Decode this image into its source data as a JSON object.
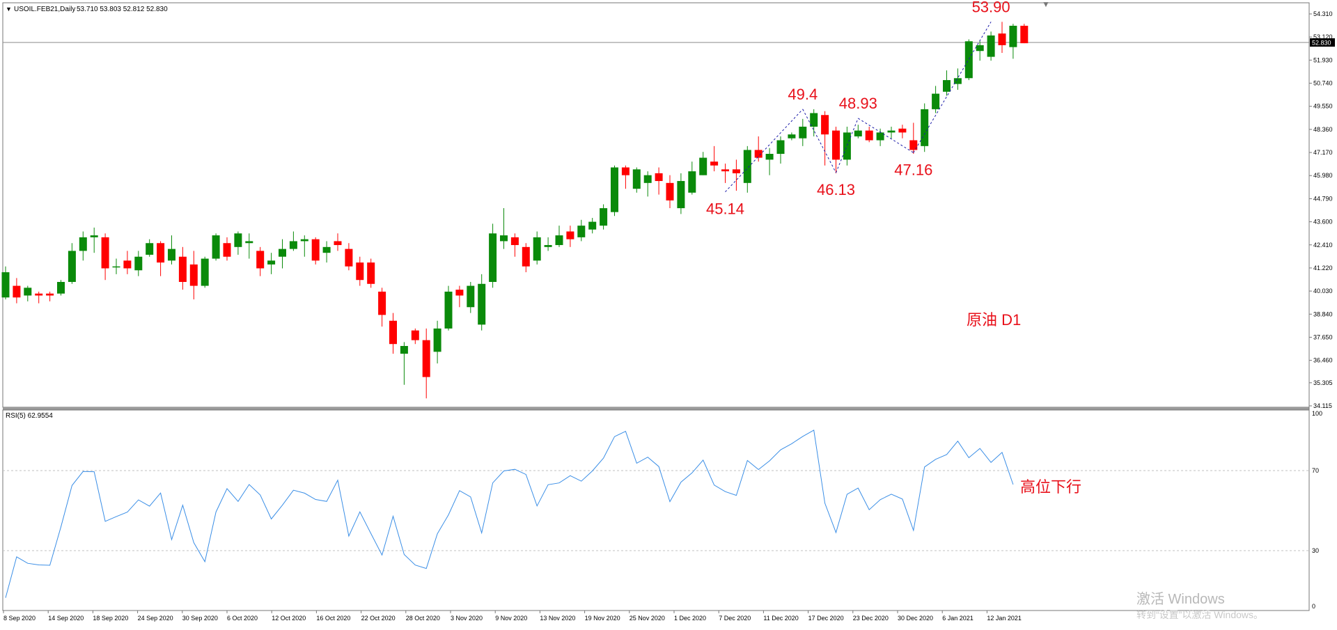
{
  "header": {
    "symbol_info": "USOIL.FEB21,Daily",
    "ohlc_info": "53.710 53.803 52.812 52.830"
  },
  "price_panel": {
    "annotation": "原油 D1",
    "current_price": "52.830",
    "price_ticks": [
      "54.310",
      "53.120",
      "51.930",
      "50.740",
      "49.550",
      "48.360",
      "47.170",
      "45.980",
      "44.790",
      "43.600",
      "42.410",
      "41.220",
      "40.030",
      "38.840",
      "37.650",
      "36.460",
      "35.305",
      "34.115"
    ]
  },
  "rsi_panel": {
    "label": "RSI(5) 62.9554",
    "annotation": "高位下行",
    "levels": [
      "100",
      "70",
      "30",
      "0"
    ]
  },
  "x_axis": {
    "labels": [
      "8 Sep 2020",
      "14 Sep 2020",
      "18 Sep 2020",
      "24 Sep 2020",
      "30 Sep 2020",
      "6 Oct 2020",
      "12 Oct 2020",
      "16 Oct 2020",
      "22 Oct 2020",
      "28 Oct 2020",
      "3 Nov 2020",
      "9 Nov 2020",
      "13 Nov 2020",
      "19 Nov 2020",
      "25 Nov 2020",
      "1 Dec 2020",
      "7 Dec 2020",
      "11 Dec 2020",
      "17 Dec 2020",
      "23 Dec 2020",
      "30 Dec 2020",
      "6 Jan 2021",
      "12 Jan 2021"
    ]
  },
  "watermark": {
    "line1": "激活 Windows",
    "line2": "转到“设置”以激活 Windows。"
  },
  "colors": {
    "bull": "#0a8a0a",
    "bear": "#ff0000",
    "rsi_line": "#3a8ee6",
    "label_red": "#e8101a",
    "zigzag": "#1a1aa8"
  },
  "chart_data": [
    {
      "type": "candlestick",
      "title": "USOIL.FEB21, Daily",
      "y_range": [
        34.115,
        54.31
      ],
      "zigzag_labels": [
        {
          "bar": 65,
          "price": 45.14,
          "text": "45.14"
        },
        {
          "bar": 72,
          "price": 49.4,
          "text": "49.4"
        },
        {
          "bar": 75,
          "price": 46.13,
          "text": "46.13"
        },
        {
          "bar": 77,
          "price": 48.93,
          "text": "48.93"
        },
        {
          "bar": 82,
          "price": 47.16,
          "text": "47.16"
        },
        {
          "bar": 89,
          "price": 53.9,
          "text": "53.90"
        }
      ],
      "bars": [
        [
          39.7,
          41.0,
          41.3,
          39.6
        ],
        [
          40.3,
          39.7,
          40.7,
          39.4
        ],
        [
          39.8,
          40.2,
          40.3,
          39.5
        ],
        [
          39.9,
          39.8,
          40.0,
          39.4
        ],
        [
          39.9,
          39.8,
          40.0,
          39.5
        ],
        [
          39.9,
          40.5,
          40.6,
          39.8
        ],
        [
          40.5,
          42.1,
          42.5,
          40.4
        ],
        [
          42.1,
          42.8,
          43.1,
          41.6
        ],
        [
          42.8,
          42.9,
          43.3,
          42.0
        ],
        [
          42.8,
          41.2,
          43.0,
          40.6
        ],
        [
          41.3,
          41.3,
          41.7,
          40.9
        ],
        [
          41.6,
          41.2,
          42.1,
          40.9
        ],
        [
          41.1,
          41.8,
          42.1,
          40.8
        ],
        [
          41.9,
          42.5,
          42.7,
          41.8
        ],
        [
          42.5,
          41.5,
          42.6,
          40.8
        ],
        [
          41.6,
          42.2,
          42.9,
          41.4
        ],
        [
          41.8,
          40.5,
          42.3,
          40.1
        ],
        [
          41.4,
          40.3,
          42.1,
          39.6
        ],
        [
          40.3,
          41.7,
          41.8,
          40.2
        ],
        [
          41.7,
          42.9,
          43.0,
          41.6
        ],
        [
          42.5,
          41.8,
          42.8,
          41.6
        ],
        [
          42.3,
          43.0,
          43.1,
          41.9
        ],
        [
          42.5,
          42.6,
          43.0,
          41.7
        ],
        [
          42.1,
          41.2,
          42.3,
          40.8
        ],
        [
          41.4,
          41.6,
          42.0,
          40.9
        ],
        [
          41.8,
          42.2,
          42.7,
          41.2
        ],
        [
          42.2,
          42.6,
          43.1,
          42.1
        ],
        [
          42.6,
          42.7,
          42.9,
          41.8
        ],
        [
          42.7,
          41.6,
          42.8,
          41.4
        ],
        [
          42.0,
          42.3,
          42.6,
          41.5
        ],
        [
          42.6,
          42.4,
          43.0,
          42.1
        ],
        [
          42.2,
          41.3,
          42.5,
          41.1
        ],
        [
          41.5,
          40.6,
          41.8,
          40.3
        ],
        [
          41.5,
          40.4,
          41.7,
          40.2
        ],
        [
          40.0,
          38.8,
          40.2,
          38.2
        ],
        [
          38.5,
          37.3,
          38.9,
          36.8
        ],
        [
          36.8,
          37.2,
          37.4,
          35.2
        ],
        [
          38.0,
          37.5,
          38.1,
          37.3
        ],
        [
          37.5,
          35.6,
          38.1,
          34.5
        ],
        [
          36.9,
          38.1,
          38.5,
          36.3
        ],
        [
          38.1,
          40.0,
          40.3,
          38.0
        ],
        [
          40.1,
          39.8,
          40.3,
          39.2
        ],
        [
          39.2,
          40.3,
          40.5,
          38.9
        ],
        [
          38.3,
          40.4,
          40.9,
          38.0
        ],
        [
          40.5,
          43.0,
          43.5,
          40.2
        ],
        [
          42.6,
          42.9,
          44.3,
          42.2
        ],
        [
          42.8,
          42.4,
          43.0,
          41.8
        ],
        [
          42.3,
          41.3,
          42.5,
          41.0
        ],
        [
          41.6,
          42.8,
          43.1,
          41.4
        ],
        [
          42.3,
          42.4,
          42.8,
          42.1
        ],
        [
          42.4,
          42.9,
          43.4,
          42.3
        ],
        [
          43.1,
          42.7,
          43.4,
          42.3
        ],
        [
          42.8,
          43.4,
          43.7,
          42.6
        ],
        [
          43.2,
          43.6,
          43.8,
          43.0
        ],
        [
          43.4,
          44.3,
          44.5,
          43.2
        ],
        [
          44.1,
          46.4,
          46.5,
          43.9
        ],
        [
          46.4,
          46.0,
          46.5,
          45.3
        ],
        [
          45.3,
          46.3,
          46.4,
          45.1
        ],
        [
          45.6,
          46.0,
          46.2,
          44.9
        ],
        [
          46.1,
          45.7,
          46.4,
          45.0
        ],
        [
          45.6,
          44.7,
          46.0,
          44.3
        ],
        [
          44.3,
          45.7,
          46.1,
          44.0
        ],
        [
          45.1,
          46.2,
          46.7,
          45.0
        ],
        [
          46.0,
          46.9,
          47.2,
          46.0
        ],
        [
          46.7,
          46.5,
          47.5,
          46.2
        ],
        [
          46.3,
          46.2,
          46.6,
          45.6
        ],
        [
          46.3,
          46.1,
          46.8,
          45.2
        ],
        [
          45.6,
          47.3,
          47.5,
          45.1
        ],
        [
          47.3,
          46.9,
          48.0,
          46.7
        ],
        [
          46.8,
          47.1,
          47.4,
          46.0
        ],
        [
          47.1,
          47.8,
          48.0,
          46.6
        ],
        [
          47.9,
          48.1,
          48.2,
          47.8
        ],
        [
          47.9,
          48.5,
          48.9,
          47.5
        ],
        [
          48.5,
          49.2,
          49.4,
          48.0
        ],
        [
          49.1,
          48.1,
          49.3,
          46.5
        ],
        [
          48.3,
          46.8,
          48.5,
          46.1
        ],
        [
          46.8,
          48.2,
          48.5,
          46.5
        ],
        [
          48.0,
          48.3,
          48.6,
          47.9
        ],
        [
          48.3,
          47.8,
          48.5,
          47.7
        ],
        [
          47.8,
          48.2,
          48.4,
          47.5
        ],
        [
          48.2,
          48.3,
          48.5,
          47.9
        ],
        [
          48.4,
          48.2,
          48.6,
          47.9
        ],
        [
          47.8,
          47.3,
          48.7,
          47.1
        ],
        [
          47.5,
          49.4,
          49.7,
          47.2
        ],
        [
          49.4,
          50.2,
          50.6,
          49.2
        ],
        [
          50.3,
          50.9,
          51.4,
          50.1
        ],
        [
          50.7,
          51.0,
          51.5,
          50.4
        ],
        [
          51.0,
          52.9,
          53.0,
          50.9
        ],
        [
          52.4,
          52.7,
          52.9,
          51.9
        ],
        [
          52.1,
          53.2,
          53.4,
          51.9
        ],
        [
          53.3,
          52.7,
          53.9,
          52.3
        ],
        [
          52.6,
          53.7,
          53.8,
          52.0
        ],
        [
          53.7,
          52.8,
          53.8,
          52.8
        ]
      ]
    },
    {
      "type": "line",
      "title": "RSI(5)",
      "y_range": [
        0,
        100
      ],
      "reference_levels": [
        70,
        30
      ],
      "values": [
        5.4,
        26.2,
        22.9,
        22.1,
        21.9,
        41.4,
        62.4,
        69.5,
        69.4,
        44.2,
        46.6,
        48.9,
        55.1,
        51.9,
        58.6,
        34.9,
        52.4,
        33.4,
        23.7,
        48.9,
        60.8,
        54.3,
        62.9,
        57.6,
        45.4,
        52.4,
        60.0,
        58.5,
        55.3,
        54.3,
        65.1,
        36.7,
        49.0,
        38.0,
        27.1,
        46.8,
        27.4,
        22.0,
        20.3,
        37.9,
        47.5,
        59.8,
        56.6,
        38.3,
        63.7,
        69.8,
        70.6,
        68.0,
        52.0,
        62.8,
        63.7,
        67.4,
        64.6,
        69.8,
        76.3,
        87.2,
        89.9,
        73.7,
        76.8,
        72.0,
        54.2,
        64.1,
        68.8,
        75.3,
        62.6,
        59.3,
        57.4,
        75.1,
        70.5,
        74.9,
        80.5,
        83.6,
        87.3,
        90.5,
        53.4,
        38.5,
        57.9,
        61.1,
        50.1,
        55.2,
        58.0,
        55.5,
        39.6,
        71.8,
        75.7,
        78.1,
        84.9,
        76.5,
        81.2,
        74.1,
        79.2,
        62.9
      ]
    }
  ]
}
